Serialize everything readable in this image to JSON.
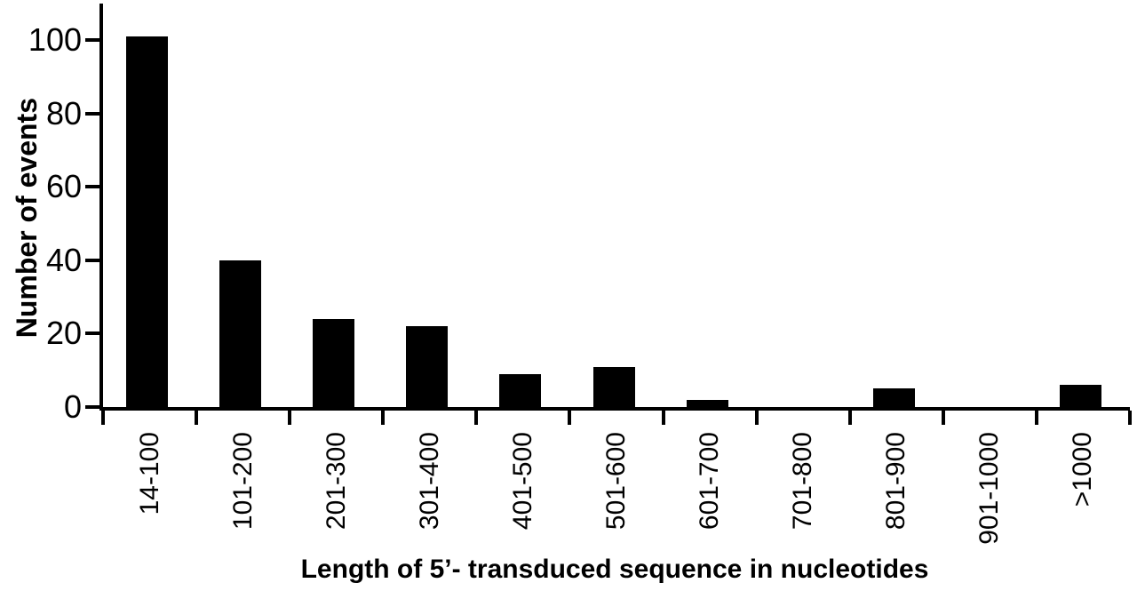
{
  "chart_data": {
    "type": "bar",
    "title": "",
    "xlabel": "Length of 5’- transduced sequence in nucleotides",
    "ylabel": "Number of events",
    "categories": [
      "14-100",
      "101-200",
      "201-300",
      "301-400",
      "401-500",
      "501-600",
      "601-700",
      "701-800",
      "801-900",
      "901-1000",
      ">1000"
    ],
    "values": [
      101,
      40,
      24,
      22,
      9,
      11,
      2,
      0,
      5,
      0,
      6
    ],
    "yticks": [
      0,
      20,
      40,
      60,
      80,
      100
    ],
    "ylim": [
      0,
      110
    ],
    "bar_color": "#000000",
    "axis_color": "#000000",
    "background_color": "#ffffff",
    "legend": "none",
    "grid": "off"
  }
}
